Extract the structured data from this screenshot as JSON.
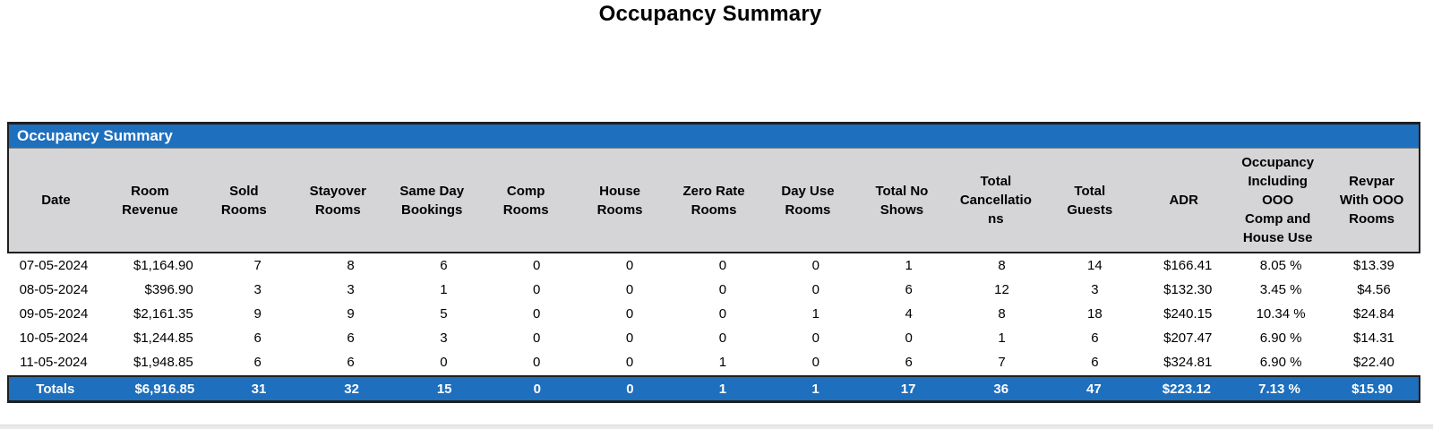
{
  "page": {
    "title": "Occupancy Summary"
  },
  "colors": {
    "banner_blue": "#1e6fbd",
    "header_gray": "#d5d5d7",
    "border_dark": "#1f1f1f",
    "totals_text": "#ffffff",
    "bottom_strip": "#e9e9e9"
  },
  "table": {
    "banner": "Occupancy Summary",
    "columns": [
      {
        "id": "date",
        "label": "Date",
        "align": "center"
      },
      {
        "id": "room-revenue",
        "label": "Room\nRevenue",
        "align": "right"
      },
      {
        "id": "sold-rooms",
        "label": "Sold\nRooms",
        "align": "center"
      },
      {
        "id": "stayover-rooms",
        "label": "Stayover\nRooms",
        "align": "center"
      },
      {
        "id": "same-day-bookings",
        "label": "Same Day\nBookings",
        "align": "center"
      },
      {
        "id": "comp-rooms",
        "label": "Comp\nRooms",
        "align": "center"
      },
      {
        "id": "house-rooms",
        "label": "House\nRooms",
        "align": "center"
      },
      {
        "id": "zero-rate-rooms",
        "label": "Zero Rate\nRooms",
        "align": "center"
      },
      {
        "id": "day-use-rooms",
        "label": "Day Use\nRooms",
        "align": "center"
      },
      {
        "id": "total-no-shows",
        "label": "Total No\nShows",
        "align": "center"
      },
      {
        "id": "total-cancellations",
        "label": "Total\nCancellatio\nns",
        "align": "center"
      },
      {
        "id": "total-guests",
        "label": "Total\nGuests",
        "align": "center"
      },
      {
        "id": "adr",
        "label": "ADR",
        "align": "center"
      },
      {
        "id": "occupancy-incl-ooo",
        "label": "Occupancy\nIncluding\nOOO\nComp and\nHouse Use",
        "align": "center"
      },
      {
        "id": "revpar-with-ooo",
        "label": "Revpar\nWith OOO\nRooms",
        "align": "center"
      }
    ],
    "rows": [
      [
        "07-05-2024",
        "$1,164.90",
        "7",
        "8",
        "6",
        "0",
        "0",
        "0",
        "0",
        "1",
        "8",
        "14",
        "$166.41",
        "8.05 %",
        "$13.39"
      ],
      [
        "08-05-2024",
        "$396.90",
        "3",
        "3",
        "1",
        "0",
        "0",
        "0",
        "0",
        "6",
        "12",
        "3",
        "$132.30",
        "3.45 %",
        "$4.56"
      ],
      [
        "09-05-2024",
        "$2,161.35",
        "9",
        "9",
        "5",
        "0",
        "0",
        "0",
        "1",
        "4",
        "8",
        "18",
        "$240.15",
        "10.34 %",
        "$24.84"
      ],
      [
        "10-05-2024",
        "$1,244.85",
        "6",
        "6",
        "3",
        "0",
        "0",
        "0",
        "0",
        "0",
        "1",
        "6",
        "$207.47",
        "6.90 %",
        "$14.31"
      ],
      [
        "11-05-2024",
        "$1,948.85",
        "6",
        "6",
        "0",
        "0",
        "0",
        "1",
        "0",
        "6",
        "7",
        "6",
        "$324.81",
        "6.90 %",
        "$22.40"
      ]
    ],
    "totals": [
      "Totals",
      "$6,916.85",
      "31",
      "32",
      "15",
      "0",
      "0",
      "1",
      "1",
      "17",
      "36",
      "47",
      "$223.12",
      "7.13 %",
      "$15.90"
    ]
  }
}
